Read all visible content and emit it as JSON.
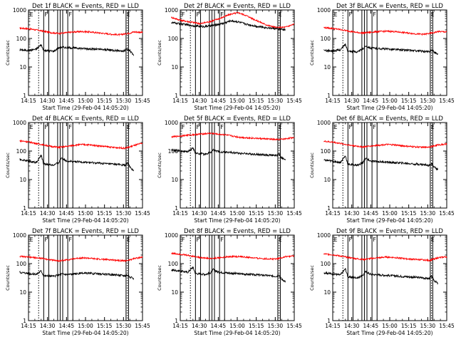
{
  "figure": {
    "xlabel": "Start Time (29-Feb-04 14:05:20)",
    "ylabel": "Counts/sec",
    "x_ticks": [
      "14:15",
      "14:30",
      "14:45",
      "15:00",
      "15:15",
      "15:30",
      "15:45"
    ],
    "y_ticks": [
      "1",
      "10",
      "100",
      "1000"
    ],
    "colors": {
      "events": "#000000",
      "lld": "#ff0000",
      "axis": "#000000"
    }
  },
  "chart_data": [
    {
      "type": "line",
      "title": "Det 1f BLACK = Events, RED = LLD",
      "x_range_min": [
        10,
        100
      ],
      "y_scale": "log",
      "ylim": [
        1,
        1000
      ],
      "x_start": 3,
      "x_end": 93,
      "events": [
        [
          3,
          40
        ],
        [
          10,
          38
        ],
        [
          16,
          42
        ],
        [
          20,
          60
        ],
        [
          22,
          38
        ],
        [
          30,
          36
        ],
        [
          33,
          45
        ],
        [
          36,
          50
        ],
        [
          40,
          48
        ],
        [
          48,
          46
        ],
        [
          56,
          44
        ],
        [
          64,
          42
        ],
        [
          72,
          40
        ],
        [
          80,
          38
        ],
        [
          85,
          36
        ],
        [
          88,
          42
        ],
        [
          90,
          38
        ],
        [
          93,
          26
        ]
      ],
      "lld": [
        [
          3,
          230
        ],
        [
          10,
          220
        ],
        [
          16,
          200
        ],
        [
          22,
          180
        ],
        [
          28,
          160
        ],
        [
          34,
          150
        ],
        [
          40,
          160
        ],
        [
          46,
          170
        ],
        [
          52,
          175
        ],
        [
          58,
          170
        ],
        [
          64,
          160
        ],
        [
          70,
          150
        ],
        [
          76,
          140
        ],
        [
          82,
          135
        ],
        [
          86,
          145
        ],
        [
          90,
          155
        ],
        [
          93,
          170
        ],
        [
          100,
          165
        ]
      ],
      "flag_labels": [
        "E",
        "F",
        "F",
        "E"
      ]
    },
    {
      "type": "line",
      "title": "Det 2f BLACK = Events, RED = LLD",
      "x_range_min": [
        10,
        100
      ],
      "y_scale": "log",
      "ylim": [
        1,
        1000
      ],
      "x_start": 3,
      "x_end": 93,
      "events": [
        [
          3,
          360
        ],
        [
          12,
          320
        ],
        [
          20,
          280
        ],
        [
          28,
          260
        ],
        [
          36,
          290
        ],
        [
          44,
          340
        ],
        [
          50,
          420
        ],
        [
          56,
          380
        ],
        [
          62,
          320
        ],
        [
          70,
          270
        ],
        [
          78,
          240
        ],
        [
          86,
          220
        ],
        [
          93,
          200
        ]
      ],
      "lld": [
        [
          3,
          550
        ],
        [
          10,
          440
        ],
        [
          18,
          380
        ],
        [
          26,
          330
        ],
        [
          34,
          400
        ],
        [
          42,
          520
        ],
        [
          50,
          720
        ],
        [
          56,
          800
        ],
        [
          62,
          640
        ],
        [
          70,
          430
        ],
        [
          78,
          300
        ],
        [
          86,
          240
        ],
        [
          93,
          250
        ],
        [
          100,
          320
        ]
      ],
      "flag_labels": [
        "F",
        "F",
        "F",
        "E"
      ]
    },
    {
      "type": "line",
      "title": "Det 3f BLACK = Events, RED = LLD",
      "x_range_min": [
        10,
        100
      ],
      "y_scale": "log",
      "ylim": [
        1,
        1000
      ],
      "x_start": 3,
      "x_end": 93,
      "events": [
        [
          3,
          38
        ],
        [
          10,
          36
        ],
        [
          16,
          40
        ],
        [
          20,
          62
        ],
        [
          22,
          36
        ],
        [
          30,
          34
        ],
        [
          34,
          44
        ],
        [
          36,
          55
        ],
        [
          40,
          46
        ],
        [
          48,
          44
        ],
        [
          56,
          42
        ],
        [
          64,
          40
        ],
        [
          72,
          38
        ],
        [
          80,
          36
        ],
        [
          86,
          34
        ],
        [
          88,
          40
        ],
        [
          90,
          34
        ],
        [
          93,
          28
        ]
      ],
      "lld": [
        [
          3,
          240
        ],
        [
          10,
          225
        ],
        [
          16,
          205
        ],
        [
          22,
          185
        ],
        [
          28,
          165
        ],
        [
          34,
          155
        ],
        [
          40,
          165
        ],
        [
          46,
          175
        ],
        [
          52,
          180
        ],
        [
          58,
          175
        ],
        [
          64,
          165
        ],
        [
          70,
          155
        ],
        [
          76,
          145
        ],
        [
          82,
          140
        ],
        [
          86,
          150
        ],
        [
          90,
          160
        ],
        [
          93,
          175
        ],
        [
          100,
          170
        ]
      ],
      "flag_labels": [
        "E",
        "F",
        "F",
        "E"
      ]
    },
    {
      "type": "line",
      "title": "Det 4f BLACK = Events, RED = LLD",
      "x_range_min": [
        10,
        100
      ],
      "y_scale": "log",
      "ylim": [
        1,
        1000
      ],
      "x_start": 3,
      "x_end": 93,
      "events": [
        [
          3,
          50
        ],
        [
          10,
          45
        ],
        [
          16,
          40
        ],
        [
          20,
          70
        ],
        [
          22,
          35
        ],
        [
          30,
          32
        ],
        [
          34,
          40
        ],
        [
          36,
          58
        ],
        [
          40,
          45
        ],
        [
          48,
          42
        ],
        [
          56,
          40
        ],
        [
          64,
          38
        ],
        [
          72,
          36
        ],
        [
          80,
          34
        ],
        [
          86,
          32
        ],
        [
          88,
          38
        ],
        [
          90,
          28
        ],
        [
          93,
          20
        ]
      ],
      "lld": [
        [
          3,
          230
        ],
        [
          10,
          210
        ],
        [
          16,
          185
        ],
        [
          22,
          165
        ],
        [
          28,
          145
        ],
        [
          34,
          135
        ],
        [
          40,
          145
        ],
        [
          46,
          160
        ],
        [
          52,
          170
        ],
        [
          58,
          165
        ],
        [
          64,
          155
        ],
        [
          70,
          145
        ],
        [
          76,
          135
        ],
        [
          82,
          130
        ],
        [
          86,
          125
        ],
        [
          90,
          140
        ],
        [
          93,
          155
        ],
        [
          100,
          190
        ]
      ],
      "flag_labels": [
        "E",
        "F",
        "F",
        "E"
      ]
    },
    {
      "type": "line",
      "title": "Det 5f BLACK = Events, RED = LLD",
      "x_range_min": [
        10,
        100
      ],
      "y_scale": "log",
      "ylim": [
        1,
        1000
      ],
      "x_start": 3,
      "x_end": 93,
      "events": [
        [
          3,
          110
        ],
        [
          10,
          100
        ],
        [
          16,
          95
        ],
        [
          20,
          130
        ],
        [
          22,
          85
        ],
        [
          30,
          78
        ],
        [
          34,
          90
        ],
        [
          36,
          110
        ],
        [
          40,
          95
        ],
        [
          48,
          90
        ],
        [
          56,
          85
        ],
        [
          64,
          80
        ],
        [
          72,
          76
        ],
        [
          80,
          72
        ],
        [
          86,
          70
        ],
        [
          88,
          80
        ],
        [
          90,
          58
        ],
        [
          93,
          48
        ]
      ],
      "lld": [
        [
          3,
          310
        ],
        [
          10,
          340
        ],
        [
          16,
          360
        ],
        [
          22,
          380
        ],
        [
          28,
          400
        ],
        [
          34,
          420
        ],
        [
          40,
          390
        ],
        [
          46,
          370
        ],
        [
          52,
          330
        ],
        [
          58,
          300
        ],
        [
          64,
          290
        ],
        [
          70,
          280
        ],
        [
          76,
          270
        ],
        [
          82,
          260
        ],
        [
          86,
          250
        ],
        [
          90,
          260
        ],
        [
          93,
          270
        ],
        [
          100,
          300
        ]
      ],
      "flag_labels": [
        "F",
        "F",
        "F",
        "E"
      ]
    },
    {
      "type": "line",
      "title": "Det 6f BLACK = Events, RED = LLD",
      "x_range_min": [
        10,
        100
      ],
      "y_scale": "log",
      "ylim": [
        1,
        1000
      ],
      "x_start": 3,
      "x_end": 93,
      "events": [
        [
          3,
          48
        ],
        [
          10,
          44
        ],
        [
          16,
          40
        ],
        [
          20,
          68
        ],
        [
          22,
          34
        ],
        [
          30,
          32
        ],
        [
          34,
          40
        ],
        [
          36,
          56
        ],
        [
          40,
          44
        ],
        [
          48,
          42
        ],
        [
          56,
          40
        ],
        [
          64,
          38
        ],
        [
          72,
          36
        ],
        [
          80,
          34
        ],
        [
          86,
          32
        ],
        [
          88,
          36
        ],
        [
          90,
          28
        ],
        [
          93,
          22
        ]
      ],
      "lld": [
        [
          3,
          220
        ],
        [
          10,
          205
        ],
        [
          16,
          185
        ],
        [
          22,
          165
        ],
        [
          28,
          150
        ],
        [
          34,
          140
        ],
        [
          40,
          150
        ],
        [
          46,
          160
        ],
        [
          52,
          170
        ],
        [
          58,
          165
        ],
        [
          64,
          155
        ],
        [
          70,
          145
        ],
        [
          76,
          140
        ],
        [
          82,
          135
        ],
        [
          86,
          140
        ],
        [
          90,
          150
        ],
        [
          93,
          165
        ],
        [
          100,
          175
        ]
      ],
      "flag_labels": [
        "E",
        "F",
        "F",
        "E"
      ]
    },
    {
      "type": "line",
      "title": "Det 7f BLACK = Events, RED = LLD",
      "x_range_min": [
        10,
        100
      ],
      "y_scale": "log",
      "ylim": [
        1,
        1000
      ],
      "x_start": 3,
      "x_end": 93,
      "events": [
        [
          3,
          50
        ],
        [
          10,
          46
        ],
        [
          16,
          42
        ],
        [
          20,
          56
        ],
        [
          22,
          38
        ],
        [
          30,
          36
        ],
        [
          34,
          40
        ],
        [
          36,
          44
        ],
        [
          40,
          42
        ],
        [
          48,
          44
        ],
        [
          56,
          46
        ],
        [
          64,
          44
        ],
        [
          72,
          42
        ],
        [
          80,
          40
        ],
        [
          86,
          38
        ],
        [
          88,
          40
        ],
        [
          90,
          34
        ],
        [
          93,
          30
        ]
      ],
      "lld": [
        [
          3,
          180
        ],
        [
          10,
          170
        ],
        [
          16,
          160
        ],
        [
          22,
          150
        ],
        [
          28,
          135
        ],
        [
          34,
          125
        ],
        [
          40,
          135
        ],
        [
          46,
          150
        ],
        [
          52,
          160
        ],
        [
          58,
          155
        ],
        [
          64,
          145
        ],
        [
          70,
          140
        ],
        [
          76,
          135
        ],
        [
          82,
          130
        ],
        [
          86,
          125
        ],
        [
          90,
          135
        ],
        [
          93,
          150
        ],
        [
          100,
          170
        ]
      ],
      "flag_labels": [
        "E",
        "F",
        "F",
        "E"
      ]
    },
    {
      "type": "line",
      "title": "Det 8f BLACK = Events, RED = LLD",
      "x_range_min": [
        10,
        100
      ],
      "y_scale": "log",
      "ylim": [
        1,
        1000
      ],
      "x_start": 3,
      "x_end": 93,
      "events": [
        [
          3,
          60
        ],
        [
          10,
          55
        ],
        [
          16,
          50
        ],
        [
          20,
          75
        ],
        [
          22,
          45
        ],
        [
          30,
          42
        ],
        [
          34,
          48
        ],
        [
          36,
          62
        ],
        [
          40,
          50
        ],
        [
          48,
          47
        ],
        [
          56,
          44
        ],
        [
          64,
          42
        ],
        [
          72,
          40
        ],
        [
          80,
          38
        ],
        [
          86,
          36
        ],
        [
          88,
          40
        ],
        [
          90,
          28
        ],
        [
          93,
          24
        ]
      ],
      "lld": [
        [
          3,
          230
        ],
        [
          10,
          215
        ],
        [
          16,
          195
        ],
        [
          22,
          175
        ],
        [
          28,
          160
        ],
        [
          34,
          150
        ],
        [
          40,
          160
        ],
        [
          46,
          170
        ],
        [
          52,
          180
        ],
        [
          58,
          175
        ],
        [
          64,
          165
        ],
        [
          70,
          155
        ],
        [
          76,
          150
        ],
        [
          82,
          145
        ],
        [
          86,
          150
        ],
        [
          90,
          160
        ],
        [
          93,
          175
        ],
        [
          100,
          185
        ]
      ],
      "flag_labels": [
        "F",
        "F",
        "F",
        "E"
      ]
    },
    {
      "type": "line",
      "title": "Det 9f BLACK = Events, RED = LLD",
      "x_range_min": [
        10,
        100
      ],
      "y_scale": "log",
      "ylim": [
        1,
        1000
      ],
      "x_start": 3,
      "x_end": 93,
      "events": [
        [
          3,
          48
        ],
        [
          10,
          44
        ],
        [
          16,
          40
        ],
        [
          20,
          66
        ],
        [
          22,
          34
        ],
        [
          30,
          32
        ],
        [
          34,
          40
        ],
        [
          36,
          52
        ],
        [
          40,
          42
        ],
        [
          48,
          40
        ],
        [
          56,
          38
        ],
        [
          64,
          36
        ],
        [
          72,
          34
        ],
        [
          80,
          32
        ],
        [
          86,
          30
        ],
        [
          88,
          36
        ],
        [
          90,
          26
        ],
        [
          93,
          20
        ]
      ],
      "lld": [
        [
          3,
          220
        ],
        [
          10,
          205
        ],
        [
          16,
          185
        ],
        [
          22,
          165
        ],
        [
          28,
          150
        ],
        [
          34,
          140
        ],
        [
          40,
          150
        ],
        [
          46,
          160
        ],
        [
          52,
          170
        ],
        [
          58,
          165
        ],
        [
          64,
          155
        ],
        [
          70,
          145
        ],
        [
          76,
          140
        ],
        [
          82,
          135
        ],
        [
          86,
          130
        ],
        [
          90,
          145
        ],
        [
          93,
          160
        ],
        [
          100,
          175
        ]
      ],
      "flag_labels": [
        "E",
        "F",
        "F",
        "E"
      ]
    }
  ],
  "markers": {
    "dotted_x_min": [
      18,
      88
    ],
    "solid_x_min": [
      22,
      26,
      33,
      35,
      37,
      41,
      45,
      87,
      89
    ]
  }
}
